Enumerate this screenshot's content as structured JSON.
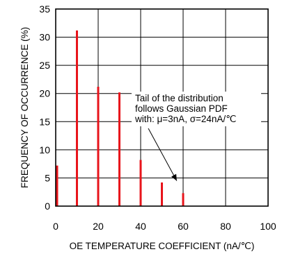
{
  "chart_data": {
    "type": "bar",
    "xlabel": "OE TEMPERATURE COEFFICIENT (nA/℃)",
    "ylabel": "FREQUENCY OF OCCURRENCE (%)",
    "xlim": [
      0,
      100
    ],
    "ylim": [
      0,
      35
    ],
    "x_ticks": [
      "0",
      "20",
      "40",
      "60",
      "80",
      "100"
    ],
    "y_ticks": [
      "0",
      "5",
      "10",
      "15",
      "20",
      "25",
      "30",
      "35"
    ],
    "grid": true,
    "bar_color": "#e8141b",
    "x": [
      0,
      10,
      20,
      30,
      40,
      50,
      60
    ],
    "values": [
      7.2,
      31.2,
      21.2,
      20.2,
      8.2,
      4.2,
      2.3
    ],
    "annotation": {
      "lines": [
        "Tail of the distribution",
        "follows Gaussian PDF",
        "with: μ=3nA, σ=24nA/℃"
      ],
      "arrow_target": [
        57,
        4.5
      ]
    }
  }
}
